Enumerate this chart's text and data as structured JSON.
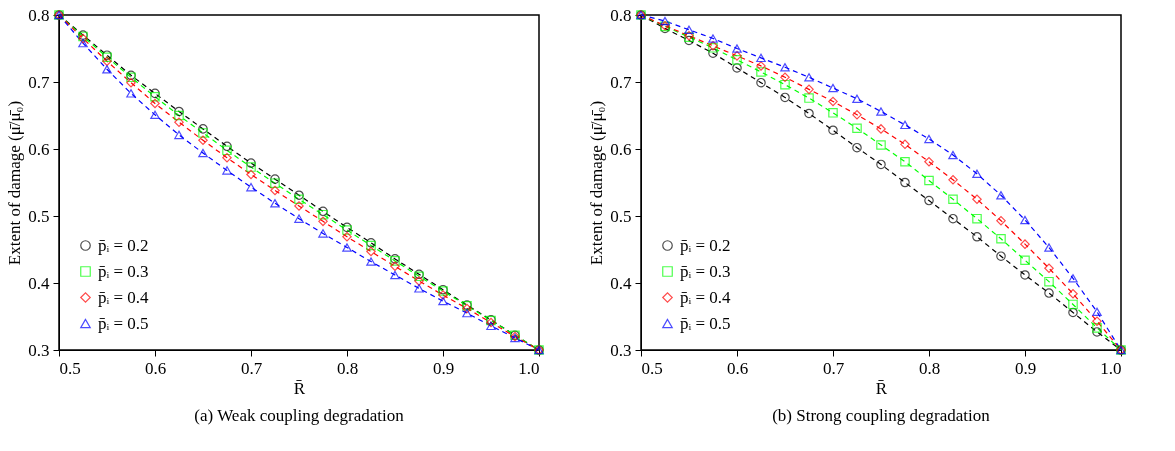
{
  "chart_data": [
    {
      "type": "line",
      "title": "(a) Weak coupling degradation",
      "xlabel": "R̄",
      "ylabel": "Extent of damage (μ̄/μ̄₀)",
      "x": [
        0.5,
        0.525,
        0.55,
        0.575,
        0.6,
        0.625,
        0.65,
        0.675,
        0.7,
        0.725,
        0.75,
        0.775,
        0.8,
        0.825,
        0.85,
        0.875,
        0.9,
        0.925,
        0.95,
        0.975,
        1.0
      ],
      "xlim": [
        0.5,
        1.0
      ],
      "xticks": [
        0.5,
        0.6,
        0.7,
        0.8,
        0.9,
        {
          "value": 1.0,
          "label": "1.0"
        }
      ],
      "ylim": [
        0.3,
        0.8
      ],
      "yticks": [
        0.3,
        0.4,
        0.5,
        0.6,
        0.7,
        0.8
      ],
      "grid": false,
      "legend": "bottom left",
      "line_style": "dashed",
      "series": [
        {
          "name": "p̄ᵢ = 0.2",
          "color": "#000000",
          "marker": "circle",
          "values": [
            0.8,
            0.77,
            0.74,
            0.71,
            0.683,
            0.656,
            0.63,
            0.604,
            0.579,
            0.555,
            0.531,
            0.507,
            0.483,
            0.46,
            0.436,
            0.413,
            0.39,
            0.367,
            0.345,
            0.322,
            0.3
          ]
        },
        {
          "name": "p̄ᵢ = 0.3",
          "color": "#00ff00",
          "marker": "square",
          "values": [
            0.8,
            0.768,
            0.737,
            0.707,
            0.678,
            0.65,
            0.624,
            0.598,
            0.573,
            0.549,
            0.525,
            0.502,
            0.479,
            0.456,
            0.433,
            0.41,
            0.388,
            0.366,
            0.344,
            0.322,
            0.3
          ]
        },
        {
          "name": "p̄ᵢ = 0.4",
          "color": "#ff0000",
          "marker": "diamond",
          "values": [
            0.8,
            0.765,
            0.731,
            0.699,
            0.668,
            0.64,
            0.613,
            0.587,
            0.562,
            0.538,
            0.515,
            0.492,
            0.469,
            0.447,
            0.425,
            0.403,
            0.382,
            0.362,
            0.341,
            0.32,
            0.3
          ]
        },
        {
          "name": "p̄ᵢ = 0.5",
          "color": "#0000ff",
          "marker": "triangle",
          "values": [
            0.8,
            0.758,
            0.719,
            0.683,
            0.651,
            0.621,
            0.594,
            0.568,
            0.543,
            0.519,
            0.496,
            0.474,
            0.453,
            0.432,
            0.412,
            0.392,
            0.373,
            0.355,
            0.336,
            0.318,
            0.3
          ]
        }
      ]
    },
    {
      "type": "line",
      "title": "(b) Strong coupling degradation",
      "xlabel": "R̄",
      "ylabel": "Extent of damage (μ̄/μ̄₀)",
      "x": [
        0.5,
        0.525,
        0.55,
        0.575,
        0.6,
        0.625,
        0.65,
        0.675,
        0.7,
        0.725,
        0.75,
        0.775,
        0.8,
        0.825,
        0.85,
        0.875,
        0.9,
        0.925,
        0.95,
        0.975,
        1.0
      ],
      "xlim": [
        0.5,
        1.0
      ],
      "xticks": [
        0.5,
        0.6,
        0.7,
        0.8,
        0.9,
        {
          "value": 1.0,
          "label": "1.0"
        }
      ],
      "ylim": [
        0.3,
        0.8
      ],
      "yticks": [
        0.3,
        0.4,
        0.5,
        0.6,
        0.7,
        0.8
      ],
      "grid": false,
      "legend": "bottom left",
      "line_style": "dashed",
      "series": [
        {
          "name": "p̄ᵢ = 0.2",
          "color": "#000000",
          "marker": "circle",
          "values": [
            0.8,
            0.78,
            0.762,
            0.743,
            0.721,
            0.699,
            0.677,
            0.653,
            0.628,
            0.602,
            0.577,
            0.55,
            0.523,
            0.496,
            0.469,
            0.44,
            0.412,
            0.385,
            0.356,
            0.327,
            0.3
          ]
        },
        {
          "name": "p̄ᵢ = 0.3",
          "color": "#00ff00",
          "marker": "square",
          "values": [
            0.8,
            0.783,
            0.767,
            0.751,
            0.733,
            0.715,
            0.696,
            0.676,
            0.654,
            0.631,
            0.606,
            0.581,
            0.553,
            0.525,
            0.496,
            0.466,
            0.434,
            0.402,
            0.368,
            0.333,
            0.3
          ]
        },
        {
          "name": "p̄ᵢ = 0.4",
          "color": "#ff0000",
          "marker": "diamond",
          "values": [
            0.8,
            0.784,
            0.769,
            0.754,
            0.739,
            0.724,
            0.707,
            0.689,
            0.671,
            0.651,
            0.63,
            0.607,
            0.581,
            0.554,
            0.525,
            0.493,
            0.458,
            0.422,
            0.384,
            0.343,
            0.3
          ]
        },
        {
          "name": "p̄ᵢ = 0.5",
          "color": "#0000ff",
          "marker": "triangle",
          "values": [
            0.8,
            0.791,
            0.778,
            0.765,
            0.75,
            0.736,
            0.722,
            0.707,
            0.691,
            0.675,
            0.656,
            0.636,
            0.615,
            0.591,
            0.563,
            0.531,
            0.494,
            0.453,
            0.407,
            0.357,
            0.3
          ]
        }
      ]
    }
  ]
}
